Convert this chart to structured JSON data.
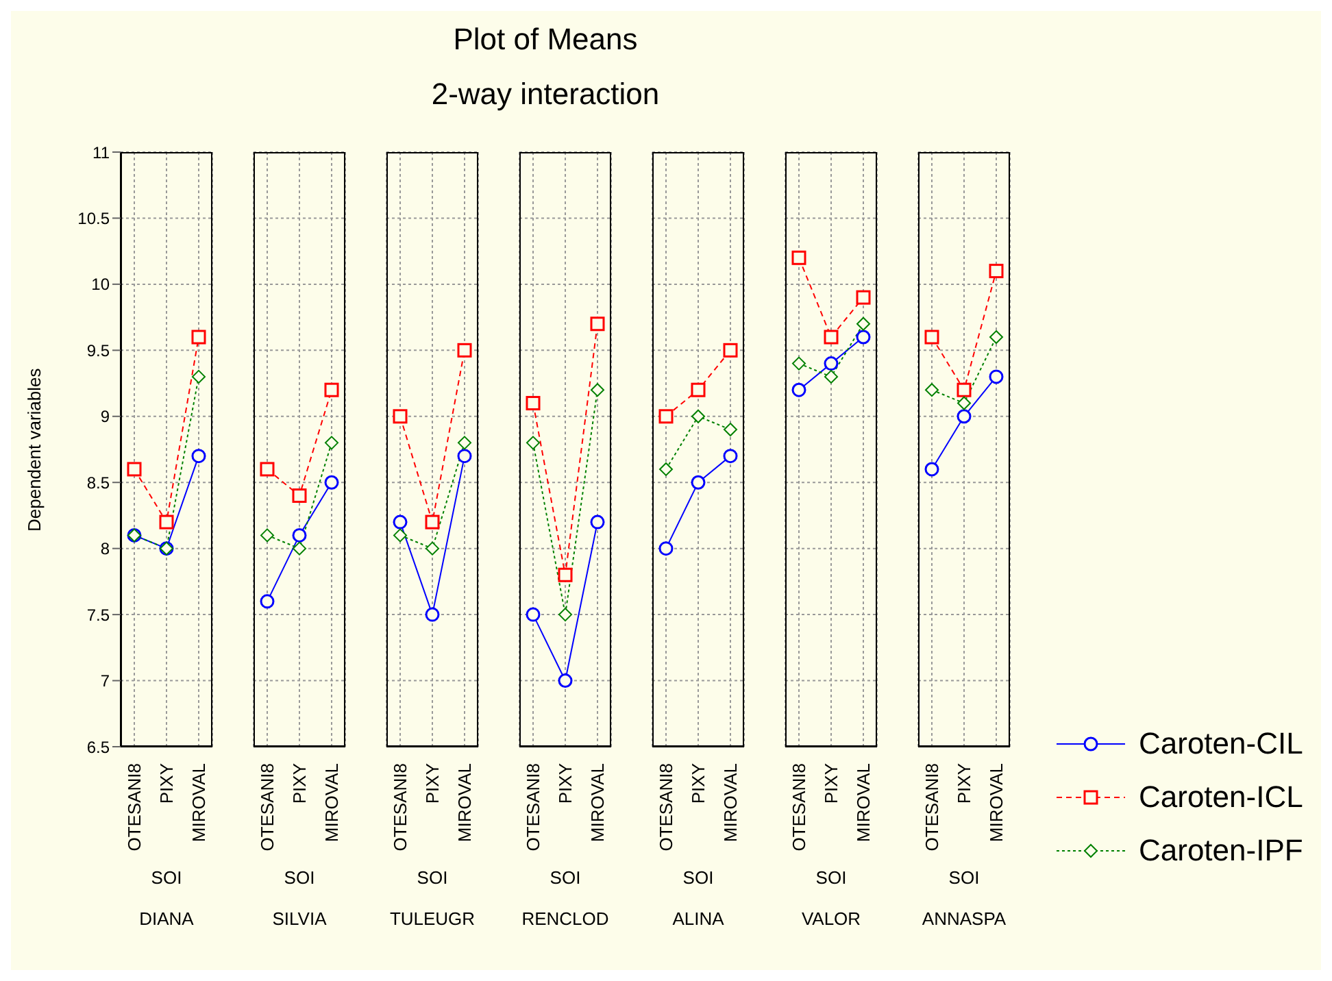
{
  "chart_data": [
    {
      "type": "line",
      "ylabel": "Dependent variables",
      "xlabel": "SOI",
      "annotations": [
        "DIANA"
      ],
      "categories": [
        "OTESANI8",
        "PIXY",
        "MIROVAL"
      ],
      "ylim": [
        6.5,
        11
      ],
      "yticks": [
        6.5,
        7,
        7.5,
        8,
        8.5,
        9,
        9.5,
        10,
        10.5,
        11
      ],
      "grid": true,
      "series": [
        {
          "color": "#0000ff",
          "marker": "circle",
          "line_style": "solid",
          "values": [
            8.1,
            8.0,
            8.7
          ]
        },
        {
          "color": "#ff0000",
          "marker": "square",
          "line_style": "dashed",
          "values": [
            8.6,
            8.2,
            9.6
          ]
        },
        {
          "color": "#008000",
          "marker": "diamond",
          "line_style": "dotted",
          "values": [
            8.1,
            8.0,
            9.3
          ]
        }
      ]
    },
    {
      "type": "line",
      "xlabel": "SOI",
      "annotations": [
        "SILVIA"
      ],
      "categories": [
        "OTESANI8",
        "PIXY",
        "MIROVAL"
      ],
      "ylim": [
        6.5,
        11
      ],
      "yticks": [
        6.5,
        7,
        7.5,
        8,
        8.5,
        9,
        9.5,
        10,
        10.5,
        11
      ],
      "grid": true,
      "tick_labels": "x",
      "series": [
        {
          "color": "#0000ff",
          "marker": "circle",
          "line_style": "solid",
          "values": [
            7.6,
            8.1,
            8.5
          ]
        },
        {
          "color": "#ff0000",
          "marker": "square",
          "line_style": "dashed",
          "values": [
            8.6,
            8.4,
            9.2
          ]
        },
        {
          "color": "#008000",
          "marker": "diamond",
          "line_style": "dotted",
          "values": [
            8.1,
            8.0,
            8.8
          ]
        }
      ]
    },
    {
      "type": "line",
      "xlabel": "SOI",
      "annotations": [
        "TULEUGR"
      ],
      "categories": [
        "OTESANI8",
        "PIXY",
        "MIROVAL"
      ],
      "ylim": [
        6.5,
        11
      ],
      "yticks": [
        6.5,
        7,
        7.5,
        8,
        8.5,
        9,
        9.5,
        10,
        10.5,
        11
      ],
      "grid": true,
      "tick_labels": "x",
      "series": [
        {
          "color": "#0000ff",
          "marker": "circle",
          "line_style": "solid",
          "values": [
            8.2,
            7.5,
            8.7
          ]
        },
        {
          "color": "#ff0000",
          "marker": "square",
          "line_style": "dashed",
          "values": [
            9.0,
            8.2,
            9.5
          ]
        },
        {
          "color": "#008000",
          "marker": "diamond",
          "line_style": "dotted",
          "values": [
            8.1,
            8.0,
            8.8
          ]
        }
      ]
    },
    {
      "type": "line",
      "title": "Plot of Means",
      "subtitle": "2-way interaction",
      "xlabel": "SOI",
      "annotations": [
        "RENCLOD"
      ],
      "categories": [
        "OTESANI8",
        "PIXY",
        "MIROVAL"
      ],
      "ylim": [
        6.5,
        11
      ],
      "yticks": [
        6.5,
        7,
        7.5,
        8,
        8.5,
        9,
        9.5,
        10,
        10.5,
        11
      ],
      "grid": true,
      "tick_labels": "x",
      "series": [
        {
          "color": "#0000ff",
          "marker": "circle",
          "line_style": "solid",
          "values": [
            7.5,
            7.0,
            8.2
          ]
        },
        {
          "color": "#ff0000",
          "marker": "square",
          "line_style": "dashed",
          "values": [
            9.1,
            7.8,
            9.7
          ]
        },
        {
          "color": "#008000",
          "marker": "diamond",
          "line_style": "dotted",
          "values": [
            8.8,
            7.5,
            9.2
          ]
        }
      ]
    },
    {
      "type": "line",
      "xlabel": "SOI",
      "annotations": [
        "ALINA"
      ],
      "categories": [
        "OTESANI8",
        "PIXY",
        "MIROVAL"
      ],
      "ylim": [
        6.5,
        11
      ],
      "yticks": [
        6.5,
        7,
        7.5,
        8,
        8.5,
        9,
        9.5,
        10,
        10.5,
        11
      ],
      "grid": true,
      "tick_labels": "x",
      "series": [
        {
          "color": "#0000ff",
          "marker": "circle",
          "line_style": "solid",
          "values": [
            8.0,
            8.5,
            8.7
          ]
        },
        {
          "color": "#ff0000",
          "marker": "square",
          "line_style": "dashed",
          "values": [
            9.0,
            9.2,
            9.5
          ]
        },
        {
          "color": "#008000",
          "marker": "diamond",
          "line_style": "dotted",
          "values": [
            8.6,
            9.0,
            8.9
          ]
        }
      ]
    },
    {
      "type": "line",
      "xlabel": "SOI",
      "annotations": [
        "VALOR"
      ],
      "categories": [
        "OTESANI8",
        "PIXY",
        "MIROVAL"
      ],
      "ylim": [
        6.5,
        11
      ],
      "yticks": [
        6.5,
        7,
        7.5,
        8,
        8.5,
        9,
        9.5,
        10,
        10.5,
        11
      ],
      "grid": true,
      "tick_labels": "x",
      "series": [
        {
          "color": "#0000ff",
          "marker": "circle",
          "line_style": "solid",
          "values": [
            9.2,
            9.4,
            9.6
          ]
        },
        {
          "color": "#ff0000",
          "marker": "square",
          "line_style": "dashed",
          "values": [
            10.2,
            9.6,
            9.9
          ]
        },
        {
          "color": "#008000",
          "marker": "diamond",
          "line_style": "dotted",
          "values": [
            9.4,
            9.3,
            9.7
          ]
        }
      ]
    },
    {
      "type": "line",
      "xlabel": "SOI",
      "annotations": [
        "ANNASPA"
      ],
      "categories": [
        "OTESANI8",
        "PIXY",
        "MIROVAL"
      ],
      "ylim": [
        6.5,
        11
      ],
      "yticks": [
        6.5,
        7,
        7.5,
        8,
        8.5,
        9,
        9.5,
        10,
        10.5,
        11
      ],
      "grid": true,
      "tick_labels": "x",
      "legend": "right",
      "series": [
        {
          "name": "Caroten-CIL",
          "color": "#0000ff",
          "marker": "circle",
          "line_style": "solid",
          "values": [
            8.6,
            9.0,
            9.3
          ]
        },
        {
          "name": "Caroten-ICL",
          "color": "#ff0000",
          "marker": "square",
          "line_style": "dashed",
          "values": [
            9.6,
            9.2,
            10.1
          ]
        },
        {
          "name": "Caroten-IPF",
          "color": "#008000",
          "marker": "diamond",
          "line_style": "dotted",
          "values": [
            9.2,
            9.1,
            9.6
          ]
        }
      ]
    }
  ]
}
